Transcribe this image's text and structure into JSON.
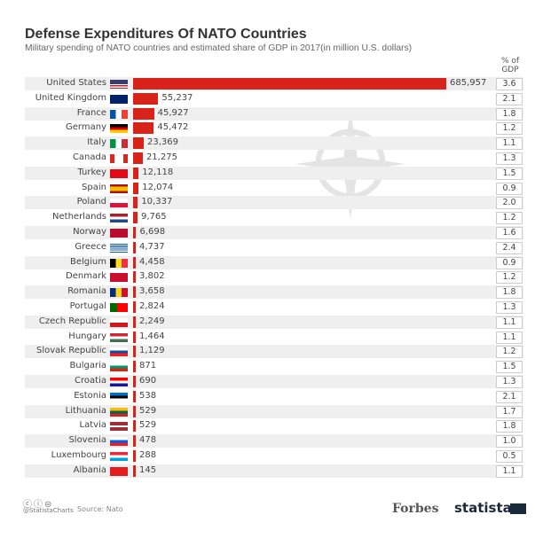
{
  "chart_data": {
    "type": "bar",
    "title": "Defense Expenditures Of NATO Countries",
    "subtitle": "Military spending of NATO countries and estimated share of GDP in 2017(in million U.S. dollars)",
    "gdp_header": "% of GDP",
    "categories": [
      "United States",
      "United Kingdom",
      "France",
      "Germany",
      "Italy",
      "Canada",
      "Turkey",
      "Spain",
      "Poland",
      "Netherlands",
      "Norway",
      "Greece",
      "Belgium",
      "Denmark",
      "Romania",
      "Portugal",
      "Czech Republic",
      "Hungary",
      "Slovak Republic",
      "Bulgaria",
      "Croatia",
      "Estonia",
      "Lithuania",
      "Latvia",
      "Slovenia",
      "Luxembourg",
      "Albania"
    ],
    "values": [
      685957,
      55237,
      45927,
      45472,
      23369,
      21275,
      12118,
      12074,
      10337,
      9765,
      6698,
      4737,
      4458,
      3802,
      3658,
      2824,
      2249,
      1464,
      1129,
      871,
      690,
      538,
      529,
      529,
      478,
      288,
      145
    ],
    "value_labels": [
      "685,957",
      "55,237",
      "45,927",
      "45,472",
      "23,369",
      "21,275",
      "12,118",
      "12,074",
      "10,337",
      "9,765",
      "6,698",
      "4,737",
      "4,458",
      "3,802",
      "3,658",
      "2,824",
      "2,249",
      "1,464",
      "1,129",
      "871",
      "690",
      "538",
      "529",
      "529",
      "478",
      "288",
      "145"
    ],
    "gdp_share": [
      "3.6",
      "2.1",
      "1.8",
      "1.2",
      "1.1",
      "1.3",
      "1.5",
      "0.9",
      "2.0",
      "1.2",
      "1.6",
      "2.4",
      "0.9",
      "1.2",
      "1.8",
      "1.3",
      "1.1",
      "1.1",
      "1.2",
      "1.5",
      "1.3",
      "2.1",
      "1.7",
      "1.8",
      "1.0",
      "0.5",
      "1.1"
    ],
    "xlim": [
      0,
      685957
    ],
    "bar_color": "#d8231a"
  },
  "footer": {
    "handle": "@StatistaCharts",
    "source": "Source: Nato",
    "brand1": "Forbes",
    "brand2": "statista"
  }
}
